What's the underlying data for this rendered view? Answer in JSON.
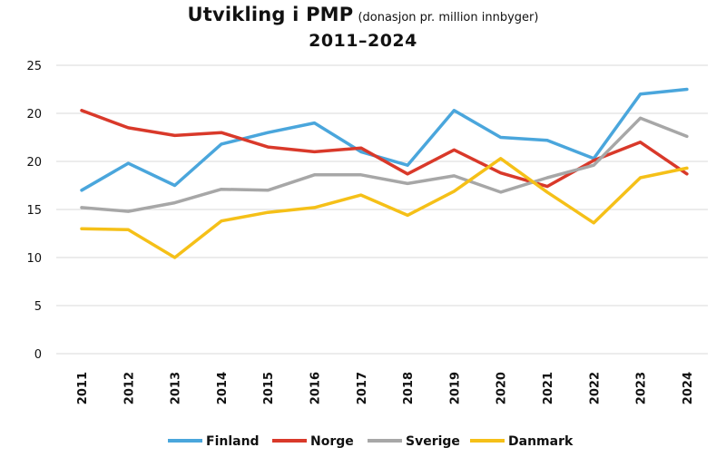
{
  "title": {
    "main": "Utvikling i PMP",
    "note": "(donasjon pr. million innbyger)",
    "years": "2011–2024"
  },
  "chart_data": {
    "type": "line",
    "x": [
      "2011",
      "2012",
      "2013",
      "2014",
      "2015",
      "2016",
      "2017",
      "2018",
      "2019",
      "2020",
      "2021",
      "2022",
      "2023",
      "2024"
    ],
    "y_tick_labels": [
      "0",
      "5",
      "10",
      "15",
      "20",
      "20",
      "25"
    ],
    "grid": true,
    "legend_position": "bottom",
    "series": [
      {
        "name": "Finland",
        "color": "#4aa6dc",
        "values": [
          17.0,
          19.8,
          17.5,
          21.8,
          23.0,
          24.0,
          21.0,
          19.6,
          25.3,
          22.5,
          22.2,
          20.3,
          27.0,
          27.5
        ]
      },
      {
        "name": "Norge",
        "color": "#d9392a",
        "values": [
          25.3,
          23.5,
          22.7,
          23.0,
          21.5,
          21.0,
          21.4,
          18.7,
          21.2,
          18.8,
          17.4,
          20.1,
          22.0,
          18.7
        ]
      },
      {
        "name": "Sverige",
        "color": "#a7a7a7",
        "values": [
          15.2,
          14.8,
          15.7,
          17.1,
          17.0,
          18.6,
          18.6,
          17.7,
          18.5,
          16.8,
          18.3,
          19.6,
          24.5,
          22.6
        ]
      },
      {
        "name": "Danmark",
        "color": "#f5c018",
        "values": [
          13.0,
          12.9,
          10.0,
          13.8,
          14.7,
          15.2,
          16.5,
          14.4,
          16.9,
          20.3,
          16.8,
          13.6,
          18.3,
          19.3
        ]
      }
    ]
  }
}
